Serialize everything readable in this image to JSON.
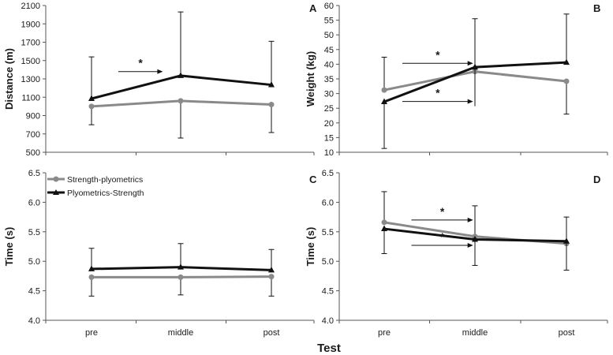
{
  "chart_data": [
    {
      "type": "line",
      "panel": "A",
      "ylabel": "Distance (m)",
      "ylim": [
        500,
        2100
      ],
      "yticks": [
        500,
        700,
        900,
        1100,
        1300,
        1500,
        1700,
        1900,
        2100
      ],
      "ytick_labels": [
        "500",
        "700",
        "900",
        "1100",
        "1300",
        "1500",
        "1700",
        "1900",
        "2100"
      ],
      "categories": [
        "pre",
        "middle",
        "post"
      ],
      "series": [
        {
          "name": "Plyometrics-Strength",
          "color": "#111111",
          "marker": "triangle",
          "values": [
            1085,
            1335,
            1235
          ],
          "err_high": [
            1540,
            2030,
            1710
          ],
          "err_low": [
            1085,
            1335,
            1235
          ]
        },
        {
          "name": "Strength-plyometrics",
          "color": "#8a8a8a",
          "marker": "circle",
          "values": [
            1000,
            1060,
            1020
          ],
          "err_high": [
            1000,
            1060,
            1020
          ],
          "err_low": [
            800,
            655,
            715
          ]
        }
      ],
      "annotations": [
        {
          "text": "*",
          "arrow_from_cat": 0.3,
          "arrow_to_cat": 0.8,
          "arrow_y": 1380
        }
      ]
    },
    {
      "type": "line",
      "panel": "B",
      "ylabel": "Weight (kg)",
      "ylim": [
        10,
        60
      ],
      "yticks": [
        10,
        15,
        20,
        25,
        30,
        35,
        40,
        45,
        50,
        55,
        60
      ],
      "ytick_labels": [
        "10",
        "15",
        "20",
        "25",
        "30",
        "35",
        "40",
        "45",
        "50",
        "55",
        "60"
      ],
      "categories": [
        "pre",
        "middle",
        "post"
      ],
      "series": [
        {
          "name": "Strength-plyometrics",
          "color": "#8a8a8a",
          "marker": "circle",
          "values": [
            31.2,
            37.5,
            34.2
          ],
          "err_high": [
            42.4,
            37.5,
            34.2
          ],
          "err_low": [
            31.2,
            37.5,
            23.0
          ]
        },
        {
          "name": "Plyometrics-Strength",
          "color": "#111111",
          "marker": "triangle",
          "values": [
            27.2,
            39.0,
            40.6
          ],
          "err_high": [
            27.2,
            55.5,
            57.1
          ],
          "err_low": [
            11.3,
            25.7,
            40.6
          ]
        }
      ],
      "annotations": [
        {
          "text": "*",
          "arrow_from_cat": 0.2,
          "arrow_to_cat": 0.98,
          "arrow_y": 40.3
        },
        {
          "text": "*",
          "arrow_from_cat": 0.2,
          "arrow_to_cat": 0.98,
          "arrow_y": 27.3
        }
      ]
    },
    {
      "type": "line",
      "panel": "C",
      "ylabel": "Time (s)",
      "ylim": [
        4.0,
        6.5
      ],
      "yticks": [
        4.0,
        4.5,
        5.0,
        5.5,
        6.0,
        6.5
      ],
      "ytick_labels": [
        "4.0",
        "4.5",
        "5.0",
        "5.5",
        "6.0",
        "6.5"
      ],
      "categories": [
        "pre",
        "middle",
        "post"
      ],
      "series": [
        {
          "name": "Plyometrics-Strength",
          "color": "#111111",
          "marker": "triangle",
          "values": [
            4.87,
            4.9,
            4.85
          ],
          "err_high": [
            5.22,
            5.3,
            5.2
          ],
          "err_low": [
            4.87,
            4.9,
            4.85
          ]
        },
        {
          "name": "Strength-plyometrics",
          "color": "#8a8a8a",
          "marker": "circle",
          "values": [
            4.73,
            4.73,
            4.74
          ],
          "err_high": [
            4.73,
            4.73,
            4.74
          ],
          "err_low": [
            4.41,
            4.43,
            4.41
          ]
        }
      ],
      "annotations": []
    },
    {
      "type": "line",
      "panel": "D",
      "ylabel": "Time (s)",
      "ylim": [
        4.0,
        6.5
      ],
      "yticks": [
        4.0,
        4.5,
        5.0,
        5.5,
        6.0,
        6.5
      ],
      "ytick_labels": [
        "4.0",
        "4.5",
        "5.0",
        "5.5",
        "6.0",
        "6.5"
      ],
      "categories": [
        "pre",
        "middle",
        "post"
      ],
      "series": [
        {
          "name": "Strength-plyometrics",
          "color": "#8a8a8a",
          "marker": "circle",
          "values": [
            5.66,
            5.42,
            5.3
          ],
          "err_high": [
            6.18,
            5.94,
            5.75
          ],
          "err_low": [
            5.66,
            5.42,
            5.3
          ]
        },
        {
          "name": "Plyometrics-Strength",
          "color": "#111111",
          "marker": "triangle",
          "values": [
            5.55,
            5.37,
            5.34
          ],
          "err_high": [
            5.55,
            5.37,
            5.34
          ],
          "err_low": [
            5.13,
            4.93,
            4.85
          ]
        }
      ],
      "annotations": [
        {
          "text": "*",
          "arrow_from_cat": 0.3,
          "arrow_to_cat": 0.98,
          "arrow_y": 5.7
        },
        {
          "text": "*",
          "arrow_from_cat": 0.3,
          "arrow_to_cat": 0.98,
          "arrow_y": 5.27
        }
      ]
    }
  ],
  "legend": {
    "items": [
      {
        "label": "Strength-plyometrics",
        "color": "#8a8a8a",
        "marker": "circle"
      },
      {
        "label": "Plyometrics-Strength",
        "color": "#111111",
        "marker": "triangle"
      }
    ]
  },
  "xlabel": "Test"
}
